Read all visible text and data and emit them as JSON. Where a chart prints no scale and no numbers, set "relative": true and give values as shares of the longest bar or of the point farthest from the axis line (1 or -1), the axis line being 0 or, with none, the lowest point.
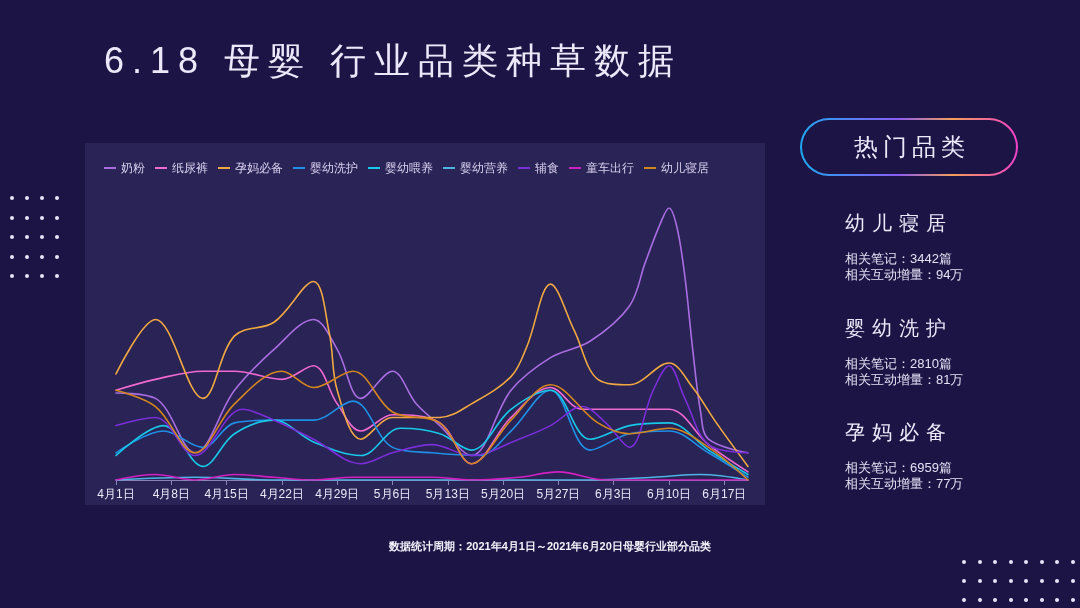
{
  "chart_data": [
    {
      "type": "line",
      "title": "6.18 母婴 行业品类种草数据",
      "annotations": [
        "数据统计周期：2021年4月1日～2021年6月20日母婴行业部分品类"
      ],
      "relative": true,
      "legend": "top left",
      "xlim": [
        "--04-01",
        "--06-20"
      ],
      "xticks": [
        {
          "value": "--04-01",
          "label": "4月1日"
        },
        {
          "value": "--04-08",
          "label": "4月8日"
        },
        {
          "value": "--04-15",
          "label": "4月15日"
        },
        {
          "value": "--04-22",
          "label": "4月22日"
        },
        {
          "value": "--04-29",
          "label": "4月29日"
        },
        {
          "value": "--05-06",
          "label": "5月6日"
        },
        {
          "value": "--05-13",
          "label": "5月13日"
        },
        {
          "value": "--05-20",
          "label": "5月20日"
        },
        {
          "value": "--05-27",
          "label": "5月27日"
        },
        {
          "value": "--06-03",
          "label": "6月3日"
        },
        {
          "value": "--06-10",
          "label": "6月10日"
        },
        {
          "value": "--06-17",
          "label": "6月17日"
        }
      ],
      "series": [
        {
          "name": "奶粉",
          "color": "#a86de0",
          "x": [
            "--04-01",
            "--04-06",
            "--04-11",
            "--04-16",
            "--04-21",
            "--04-26",
            "--04-29",
            "--05-02",
            "--05-06",
            "--05-09",
            "--05-12",
            "--05-16",
            "--05-21",
            "--05-26",
            "--05-31",
            "--06-05",
            "--06-07",
            "--06-09",
            "--06-10",
            "--06-11",
            "--06-12",
            "--06-13",
            "--06-14",
            "--06-15",
            "--06-20"
          ],
          "values": [
            0.32,
            0.3,
            0.1,
            0.33,
            0.48,
            0.59,
            0.48,
            0.3,
            0.4,
            0.28,
            0.2,
            0.09,
            0.33,
            0.45,
            0.51,
            0.64,
            0.8,
            0.95,
            1.0,
            0.93,
            0.75,
            0.48,
            0.25,
            0.15,
            0.1
          ]
        },
        {
          "name": "纸尿裤",
          "color": "#f06ad0",
          "x": [
            "--04-01",
            "--04-06",
            "--04-12",
            "--04-16",
            "--04-22",
            "--04-26",
            "--04-29",
            "--05-02",
            "--05-06",
            "--05-12",
            "--05-16",
            "--05-21",
            "--05-26",
            "--05-30",
            "--06-05",
            "--06-10",
            "--06-15",
            "--06-20"
          ],
          "values": [
            0.33,
            0.37,
            0.4,
            0.4,
            0.37,
            0.42,
            0.28,
            0.18,
            0.24,
            0.21,
            0.06,
            0.23,
            0.34,
            0.26,
            0.26,
            0.26,
            0.13,
            0.03
          ]
        },
        {
          "name": "孕妈必备",
          "color": "#f0a840",
          "x": [
            "--04-01",
            "--04-06",
            "--04-12",
            "--04-16",
            "--04-21",
            "--04-26",
            "--04-28",
            "--04-29",
            "--05-02",
            "--05-06",
            "--05-12",
            "--05-16",
            "--05-21",
            "--05-23",
            "--05-26",
            "--05-29",
            "--06-01",
            "--06-05",
            "--06-10",
            "--06-13",
            "--06-16",
            "--06-20"
          ],
          "values": [
            0.39,
            0.59,
            0.3,
            0.53,
            0.58,
            0.73,
            0.54,
            0.33,
            0.15,
            0.23,
            0.23,
            0.28,
            0.38,
            0.49,
            0.72,
            0.55,
            0.37,
            0.35,
            0.43,
            0.34,
            0.21,
            0.05
          ]
        },
        {
          "name": "婴幼洗护",
          "color": "#1e90e6",
          "x": [
            "--04-01",
            "--04-07",
            "--04-12",
            "--04-16",
            "--04-21",
            "--04-26",
            "--05-01",
            "--05-06",
            "--05-11",
            "--05-17",
            "--05-21",
            "--05-26",
            "--05-31",
            "--06-05",
            "--06-10",
            "--06-15",
            "--06-20"
          ],
          "values": [
            0.1,
            0.18,
            0.12,
            0.21,
            0.22,
            0.22,
            0.29,
            0.12,
            0.1,
            0.09,
            0.18,
            0.33,
            0.11,
            0.17,
            0.18,
            0.1,
            0.01
          ]
        },
        {
          "name": "婴幼喂养",
          "color": "#18c8e8",
          "x": [
            "--04-01",
            "--04-07",
            "--04-12",
            "--04-16",
            "--04-21",
            "--04-26",
            "--05-02",
            "--05-07",
            "--05-12",
            "--05-16",
            "--05-21",
            "--05-26",
            "--05-31",
            "--06-05",
            "--06-10",
            "--06-15",
            "--06-20"
          ],
          "values": [
            0.09,
            0.2,
            0.05,
            0.17,
            0.22,
            0.14,
            0.09,
            0.19,
            0.17,
            0.11,
            0.26,
            0.33,
            0.15,
            0.2,
            0.21,
            0.11,
            0.02
          ]
        },
        {
          "name": "婴幼营养",
          "color": "#4fb4e4",
          "x": [
            "--04-01",
            "--04-11",
            "--04-21",
            "--05-01",
            "--05-11",
            "--05-21",
            "--05-31",
            "--06-08",
            "--06-14",
            "--06-20"
          ],
          "values": [
            0.0,
            0.01,
            0.0,
            0.0,
            0.0,
            0.0,
            0.0,
            0.01,
            0.02,
            0.0
          ]
        },
        {
          "name": "辅食",
          "color": "#7a2ed8",
          "x": [
            "--04-01",
            "--04-06",
            "--04-11",
            "--04-17",
            "--04-21",
            "--04-26",
            "--05-02",
            "--05-06",
            "--05-11",
            "--05-16",
            "--05-22",
            "--05-26",
            "--05-30",
            "--06-02",
            "--06-05",
            "--06-08",
            "--06-10",
            "--06-12",
            "--06-15",
            "--06-20"
          ],
          "values": [
            0.2,
            0.23,
            0.09,
            0.26,
            0.22,
            0.15,
            0.06,
            0.1,
            0.13,
            0.09,
            0.15,
            0.2,
            0.27,
            0.21,
            0.12,
            0.33,
            0.42,
            0.3,
            0.13,
            0.1
          ]
        },
        {
          "name": "童车出行",
          "color": "#d020c0",
          "x": [
            "--04-01",
            "--04-06",
            "--04-11",
            "--04-16",
            "--04-21",
            "--04-26",
            "--05-01",
            "--05-11",
            "--05-16",
            "--05-22",
            "--05-27",
            "--06-02",
            "--06-10",
            "--06-20"
          ],
          "values": [
            0.0,
            0.02,
            0.0,
            0.02,
            0.01,
            0.0,
            0.01,
            0.01,
            0.0,
            0.01,
            0.03,
            0.0,
            0.0,
            0.0
          ]
        },
        {
          "name": "幼儿寝居",
          "color": "#d4861e",
          "x": [
            "--04-01",
            "--04-06",
            "--04-11",
            "--04-16",
            "--04-22",
            "--04-26",
            "--05-01",
            "--05-06",
            "--05-12",
            "--05-16",
            "--05-21",
            "--05-26",
            "--06-01",
            "--06-05",
            "--06-10",
            "--06-15",
            "--06-20"
          ],
          "values": [
            0.33,
            0.27,
            0.1,
            0.28,
            0.4,
            0.34,
            0.4,
            0.25,
            0.21,
            0.06,
            0.22,
            0.35,
            0.21,
            0.17,
            0.19,
            0.12,
            0.0
          ]
        }
      ]
    },
    {
      "type": "other",
      "title": "热门品类",
      "categories": [
        "幼儿寝居",
        "婴幼洗护",
        "孕妈必备"
      ],
      "annotations": [
        "相关笔记：3442篇",
        "相关互动增量：94万",
        "相关笔记：2810篇",
        "相关互动增量：81万",
        "相关笔记：6959篇",
        "相关互动增量：77万"
      ]
    }
  ]
}
